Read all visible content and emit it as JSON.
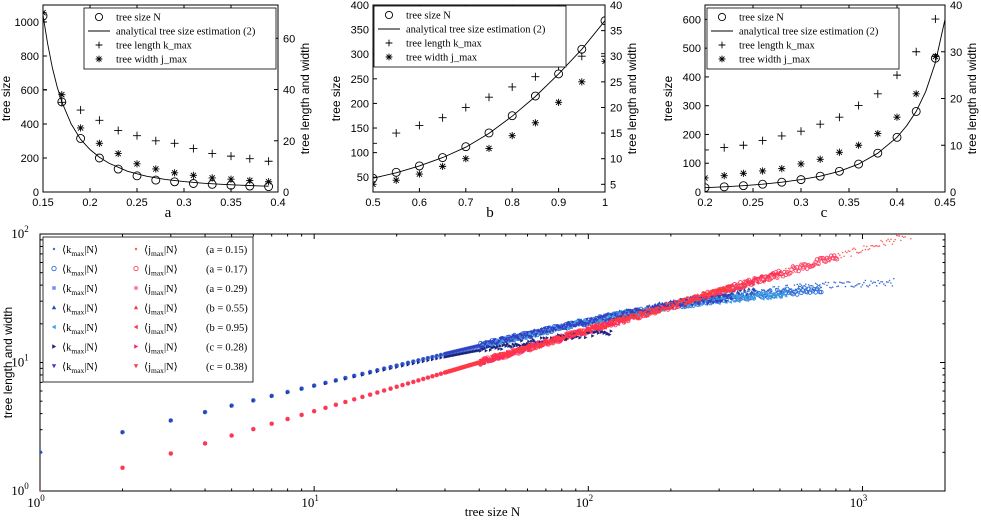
{
  "chart_data": [
    {
      "id": "a",
      "type": "line",
      "panel_label": "a",
      "ylabel_left": "tree size",
      "ylabel_right": "tree length and width",
      "xlim": [
        0.15,
        0.4
      ],
      "ylim_left": [
        0,
        1100
      ],
      "ylim_right": [
        0,
        73
      ],
      "xticks": [
        "0.15",
        "0.2",
        "0.25",
        "0.3",
        "0.35",
        "0.4"
      ],
      "xtick_values": [
        0.15,
        0.2,
        0.25,
        0.3,
        0.35,
        0.4
      ],
      "yticks_left": [
        "0",
        "200",
        "400",
        "600",
        "800",
        "1000"
      ],
      "ytick_values_left": [
        0,
        200,
        400,
        600,
        800,
        1000
      ],
      "yticks_right": [
        "0",
        "20",
        "40",
        "60"
      ],
      "ytick_values_right": [
        0,
        20,
        40,
        60
      ],
      "legend_position": "top-right",
      "legend": [
        {
          "marker": "circle",
          "label": "tree size N"
        },
        {
          "marker": "line",
          "label": "analytical tree size estimation (2)"
        },
        {
          "marker": "plus",
          "label": "tree length k_max"
        },
        {
          "marker": "star",
          "label": "tree width j_max"
        }
      ],
      "x": [
        0.15,
        0.17,
        0.19,
        0.21,
        0.23,
        0.25,
        0.27,
        0.29,
        0.31,
        0.33,
        0.35,
        0.37,
        0.39
      ],
      "tree_size_N": [
        1035,
        530,
        315,
        200,
        135,
        95,
        70,
        60,
        50,
        45,
        40,
        35,
        32
      ],
      "analytic_x": [
        0.15,
        0.155,
        0.16,
        0.165,
        0.17,
        0.18,
        0.19,
        0.2,
        0.21,
        0.22,
        0.24,
        0.26,
        0.28,
        0.3,
        0.32,
        0.34,
        0.36,
        0.38,
        0.39
      ],
      "analytic_N": [
        1040,
        870,
        730,
        620,
        530,
        400,
        310,
        250,
        205,
        170,
        122,
        93,
        74,
        61,
        52,
        45,
        40,
        36,
        34
      ],
      "tree_length_kmax": [
        40,
        35,
        32,
        28,
        24,
        22,
        20,
        19,
        17,
        15,
        14,
        13,
        12
      ],
      "tree_width_jmax": [
        70,
        38,
        25,
        19,
        15,
        11,
        9,
        7.5,
        6.5,
        5.5,
        5,
        4.5,
        4
      ]
    },
    {
      "id": "b",
      "type": "line",
      "panel_label": "b",
      "ylabel_left": "tree size",
      "ylabel_right": "tree length and width",
      "xlim": [
        0.5,
        1.0
      ],
      "ylim_left": [
        20,
        400
      ],
      "ylim_right": [
        3.5,
        40
      ],
      "xticks": [
        "0.5",
        "0.6",
        "0.7",
        "0.8",
        "0.9",
        "1"
      ],
      "xtick_values": [
        0.5,
        0.6,
        0.7,
        0.8,
        0.9,
        1.0
      ],
      "yticks_left": [
        "50",
        "100",
        "150",
        "200",
        "250",
        "300",
        "350",
        "400"
      ],
      "ytick_values_left": [
        50,
        100,
        150,
        200,
        250,
        300,
        350,
        400
      ],
      "yticks_right": [
        "5",
        "10",
        "15",
        "20",
        "25",
        "30",
        "35",
        "40"
      ],
      "ytick_values_right": [
        5,
        10,
        15,
        20,
        25,
        30,
        35,
        40
      ],
      "legend_position": "top-left",
      "legend": [
        {
          "marker": "circle",
          "label": "tree size N"
        },
        {
          "marker": "line",
          "label": "analytical tree size estimation (2)"
        },
        {
          "marker": "plus",
          "label": "tree length k_max"
        },
        {
          "marker": "star",
          "label": "tree width j_max"
        }
      ],
      "x": [
        0.5,
        0.55,
        0.6,
        0.65,
        0.7,
        0.75,
        0.8,
        0.85,
        0.9,
        0.95,
        1.0
      ],
      "tree_size_N": [
        48,
        60,
        73,
        90,
        112,
        140,
        175,
        215,
        260,
        310,
        368
      ],
      "analytic_x": [
        0.5,
        0.55,
        0.6,
        0.65,
        0.7,
        0.75,
        0.8,
        0.85,
        0.9,
        0.95,
        1.0
      ],
      "analytic_N": [
        48,
        59,
        73,
        90,
        111,
        139,
        174,
        214,
        260,
        310,
        368
      ],
      "tree_length_kmax": [
        13,
        15,
        16.5,
        18,
        20,
        22,
        24,
        26,
        28,
        30,
        30.5
      ],
      "tree_width_jmax": [
        5,
        5.8,
        7,
        8.5,
        10,
        12,
        14.5,
        17,
        21,
        25,
        29
      ]
    },
    {
      "id": "c",
      "type": "line",
      "panel_label": "c",
      "ylabel_left": "tree size",
      "ylabel_right": "tree length and width",
      "xlim": [
        0.2,
        0.45
      ],
      "ylim_left": [
        0,
        650
      ],
      "ylim_right": [
        0,
        40
      ],
      "xticks": [
        "0.2",
        "0.25",
        "0.3",
        "0.35",
        "0.4",
        "0.45"
      ],
      "xtick_values": [
        0.2,
        0.25,
        0.3,
        0.35,
        0.4,
        0.45
      ],
      "yticks_left": [
        "0",
        "100",
        "200",
        "300",
        "400",
        "500",
        "600"
      ],
      "ytick_values_left": [
        0,
        100,
        200,
        300,
        400,
        500,
        600
      ],
      "yticks_right": [
        "0",
        "10",
        "20",
        "30",
        "40"
      ],
      "ytick_values_right": [
        0,
        10,
        20,
        30,
        40
      ],
      "legend_position": "top-left",
      "legend": [
        {
          "marker": "circle",
          "label": "tree size N"
        },
        {
          "marker": "line",
          "label": "analytical tree size estimation (2)"
        },
        {
          "marker": "plus",
          "label": "tree length k_max"
        },
        {
          "marker": "star",
          "label": "tree width j_max"
        }
      ],
      "x": [
        0.2,
        0.22,
        0.24,
        0.26,
        0.28,
        0.3,
        0.32,
        0.34,
        0.36,
        0.38,
        0.4,
        0.42,
        0.44
      ],
      "tree_size_N": [
        15,
        18,
        22,
        27,
        34,
        43,
        55,
        72,
        97,
        135,
        190,
        280,
        465
      ],
      "analytic_x": [
        0.2,
        0.22,
        0.24,
        0.26,
        0.28,
        0.3,
        0.32,
        0.34,
        0.36,
        0.38,
        0.4,
        0.41,
        0.42,
        0.43,
        0.44,
        0.45
      ],
      "analytic_N": [
        15,
        18,
        22,
        27,
        34,
        43,
        55,
        72,
        97,
        135,
        190,
        230,
        280,
        350,
        450,
        600
      ],
      "tree_length_kmax": [
        9,
        9.5,
        10,
        11,
        12,
        13,
        14.5,
        16,
        18.5,
        21,
        25,
        30,
        37
      ],
      "tree_width_jmax": [
        3,
        3.5,
        4,
        4.5,
        5,
        6,
        7,
        8.5,
        10,
        12.5,
        16,
        21,
        29
      ]
    },
    {
      "id": "main",
      "type": "scatter",
      "xlabel": "tree size N",
      "ylabel": "tree length and width",
      "xscale": "log",
      "yscale": "log",
      "xlim": [
        1,
        2000
      ],
      "ylim": [
        1,
        100
      ],
      "xticks": [
        "10",
        "10",
        "10",
        "10"
      ],
      "xtick_exponents": [
        "0",
        "1",
        "2",
        "3"
      ],
      "xtick_values": [
        1,
        10,
        100,
        1000
      ],
      "yticks": [
        "10",
        "10",
        "10"
      ],
      "ytick_exponents": [
        "0",
        "1",
        "2"
      ],
      "ytick_values": [
        1,
        10,
        100
      ],
      "legend_position": "top-left",
      "series": [
        {
          "name": "<k_max|N> (a = 0.15)",
          "kind": "k",
          "color": "#3a6cd8",
          "marker": "dot",
          "nmax": 1300,
          "cap": 44,
          "spread": 0.03
        },
        {
          "name": "<j_max|N> (a = 0.15)",
          "kind": "j",
          "color": "#ff5a5a",
          "marker": "dot",
          "nmax": 1500,
          "spread": 0.03
        },
        {
          "name": "<k_max|N> (a = 0.17)",
          "kind": "k",
          "color": "#2b6fd6",
          "marker": "circle",
          "nmax": 700,
          "cap": 40,
          "spread": 0.03
        },
        {
          "name": "<j_max|N> (a = 0.17)",
          "kind": "j",
          "color": "#ff4466",
          "marker": "circle",
          "nmax": 800,
          "spread": 0.03
        },
        {
          "name": "<k_max|N> (a = 0.29)",
          "kind": "k",
          "color": "#6f8ff0",
          "marker": "square",
          "nmax": 60,
          "cap": 30,
          "spread": 0.02
        },
        {
          "name": "<j_max|N> (a = 0.29)",
          "kind": "j",
          "color": "#ff7c8e",
          "marker": "square",
          "nmax": 60,
          "spread": 0.02
        },
        {
          "name": "<k_max|N> (b = 0.55)",
          "kind": "k",
          "color": "#1e4fb0",
          "marker": "triangle-up",
          "nmax": 400,
          "cap": 45,
          "spread": 0.03
        },
        {
          "name": "<j_max|N> (b = 0.55)",
          "kind": "j",
          "color": "#e8425c",
          "marker": "triangle-up",
          "nmax": 400,
          "spread": 0.03
        },
        {
          "name": "<k_max|N> (b = 0.95)",
          "kind": "k",
          "color": "#3aa0e6",
          "marker": "triangle-left",
          "nmax": 520,
          "cap": 38,
          "spread": 0.03
        },
        {
          "name": "<j_max|N> (b = 0.95)",
          "kind": "j",
          "color": "#ff3355",
          "marker": "triangle-left",
          "nmax": 500,
          "spread": 0.03
        },
        {
          "name": "<k_max|N> (c = 0.28)",
          "kind": "k",
          "color": "#1a237e",
          "marker": "triangle-right",
          "nmax": 120,
          "cap": 20,
          "spread": 0.03
        },
        {
          "name": "<j_max|N> (c = 0.28)",
          "kind": "j",
          "color": "#ff2277",
          "marker": "triangle-right",
          "nmax": 130,
          "spread": 0.03
        },
        {
          "name": "<k_max|N> (c = 0.38)",
          "kind": "k",
          "color": "#3b3bc4",
          "marker": "triangle-down",
          "nmax": 330,
          "cap": 40,
          "spread": 0.03
        },
        {
          "name": "<j_max|N> (c = 0.38)",
          "kind": "j",
          "color": "#ff3b3b",
          "marker": "triangle-down",
          "nmax": 330,
          "spread": 0.03
        }
      ],
      "legend_rows": [
        {
          "k": "⟨k",
          "k_sub": "max",
          "k_tail": "|N⟩",
          "j": "⟨j",
          "j_sub": "max",
          "j_tail": "|N⟩",
          "param": "(a = 0.15)",
          "k_color": "#3a6cd8",
          "j_color": "#ff5a5a",
          "marker": "dot"
        },
        {
          "k": "⟨k",
          "k_sub": "max",
          "k_tail": "|N⟩",
          "j": "⟨j",
          "j_sub": "max",
          "j_tail": "|N⟩",
          "param": "(a = 0.17)",
          "k_color": "#2b6fd6",
          "j_color": "#ff4466",
          "marker": "circle"
        },
        {
          "k": "⟨k",
          "k_sub": "max",
          "k_tail": "|N⟩",
          "j": "⟨j",
          "j_sub": "max",
          "j_tail": "|N⟩",
          "param": "(a = 0.29)",
          "k_color": "#6f8ff0",
          "j_color": "#ff7c8e",
          "marker": "square"
        },
        {
          "k": "⟨k",
          "k_sub": "max",
          "k_tail": "|N⟩",
          "j": "⟨j",
          "j_sub": "max",
          "j_tail": "|N⟩",
          "param": "(b = 0.55)",
          "k_color": "#1e4fb0",
          "j_color": "#e8425c",
          "marker": "triangle-up"
        },
        {
          "k": "⟨k",
          "k_sub": "max",
          "k_tail": "|N⟩",
          "j": "⟨j",
          "j_sub": "max",
          "j_tail": "|N⟩",
          "param": "(b = 0.95)",
          "k_color": "#3aa0e6",
          "j_color": "#ff3355",
          "marker": "triangle-left"
        },
        {
          "k": "⟨k",
          "k_sub": "max",
          "k_tail": "|N⟩",
          "j": "⟨j",
          "j_sub": "max",
          "j_tail": "|N⟩",
          "param": "(c = 0.28)",
          "k_color": "#1a237e",
          "j_color": "#ff2277",
          "marker": "triangle-right"
        },
        {
          "k": "⟨k",
          "k_sub": "max",
          "k_tail": "|N⟩",
          "j": "⟨j",
          "j_sub": "max",
          "j_tail": "|N⟩",
          "param": "(c = 0.38)",
          "k_color": "#3b3bc4",
          "j_color": "#ff3b3b",
          "marker": "triangle-down"
        }
      ]
    }
  ],
  "colors": {
    "axis": "#000000",
    "k_series": "#2b5fd0",
    "j_series": "#ff4060"
  }
}
